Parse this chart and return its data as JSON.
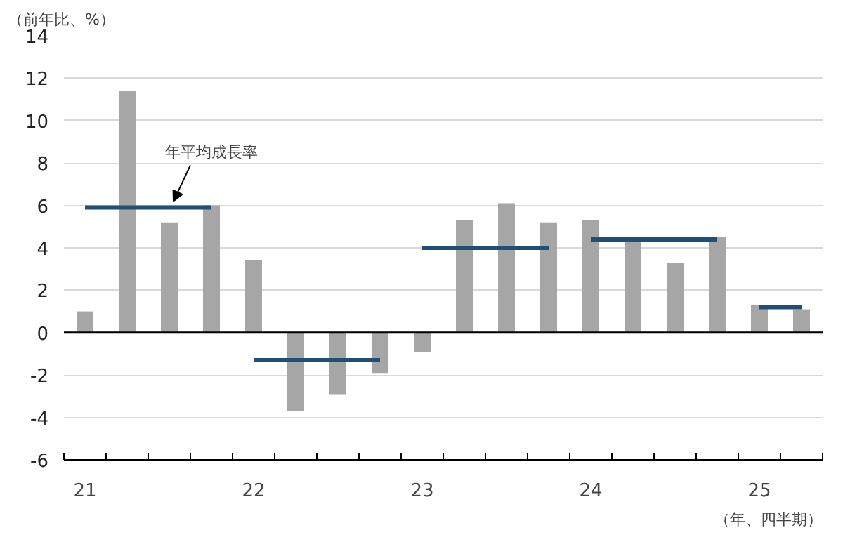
{
  "chart_data": {
    "type": "bar",
    "ylabel": "（前年比、%）",
    "xlabel": "（年、四半期）",
    "categories": [
      "21",
      null,
      null,
      null,
      "22",
      null,
      null,
      null,
      "23",
      null,
      null,
      null,
      "24",
      null,
      null,
      null,
      "25",
      null
    ],
    "series": [
      {
        "color": "#a6a6a6",
        "values": [
          1.0,
          11.4,
          5.2,
          6.0,
          3.4,
          -3.7,
          -2.9,
          -1.9,
          -0.9,
          5.3,
          6.1,
          5.2,
          5.3,
          4.4,
          3.3,
          4.5,
          1.3,
          1.1
        ]
      },
      {
        "type": "line",
        "color": "#1f4e79",
        "values": [
          5.9,
          5.9,
          5.9,
          5.9,
          null,
          null,
          null,
          null,
          null,
          null,
          null,
          null,
          null,
          null,
          null,
          null,
          null,
          null
        ]
      },
      {
        "type": "line",
        "color": "#1f4e79",
        "values": [
          null,
          null,
          null,
          null,
          -1.3,
          -1.3,
          -1.3,
          -1.3,
          null,
          null,
          null,
          null,
          null,
          null,
          null,
          null,
          null,
          null
        ]
      },
      {
        "type": "line",
        "color": "#1f4e79",
        "values": [
          null,
          null,
          null,
          null,
          null,
          null,
          null,
          null,
          4.0,
          4.0,
          4.0,
          4.0,
          null,
          null,
          null,
          null,
          null,
          null
        ]
      },
      {
        "type": "line",
        "color": "#1f4e79",
        "values": [
          null,
          null,
          null,
          null,
          null,
          null,
          null,
          null,
          null,
          null,
          null,
          null,
          4.4,
          4.4,
          4.4,
          4.4,
          null,
          null
        ]
      },
      {
        "type": "line",
        "color": "#1f4e79",
        "values": [
          null,
          null,
          null,
          null,
          null,
          null,
          null,
          null,
          null,
          null,
          null,
          null,
          null,
          null,
          null,
          null,
          1.2,
          1.2
        ]
      }
    ],
    "ylim": [
      -6,
      14
    ],
    "yticks": [
      -6,
      -4,
      -2,
      0,
      2,
      4,
      6,
      8,
      10,
      12,
      14
    ],
    "grid": "y",
    "ref_lines": [
      {
        "axis": "y",
        "value": 0,
        "color": "#000000"
      }
    ],
    "annotations": [
      "年平均成長率"
    ]
  }
}
